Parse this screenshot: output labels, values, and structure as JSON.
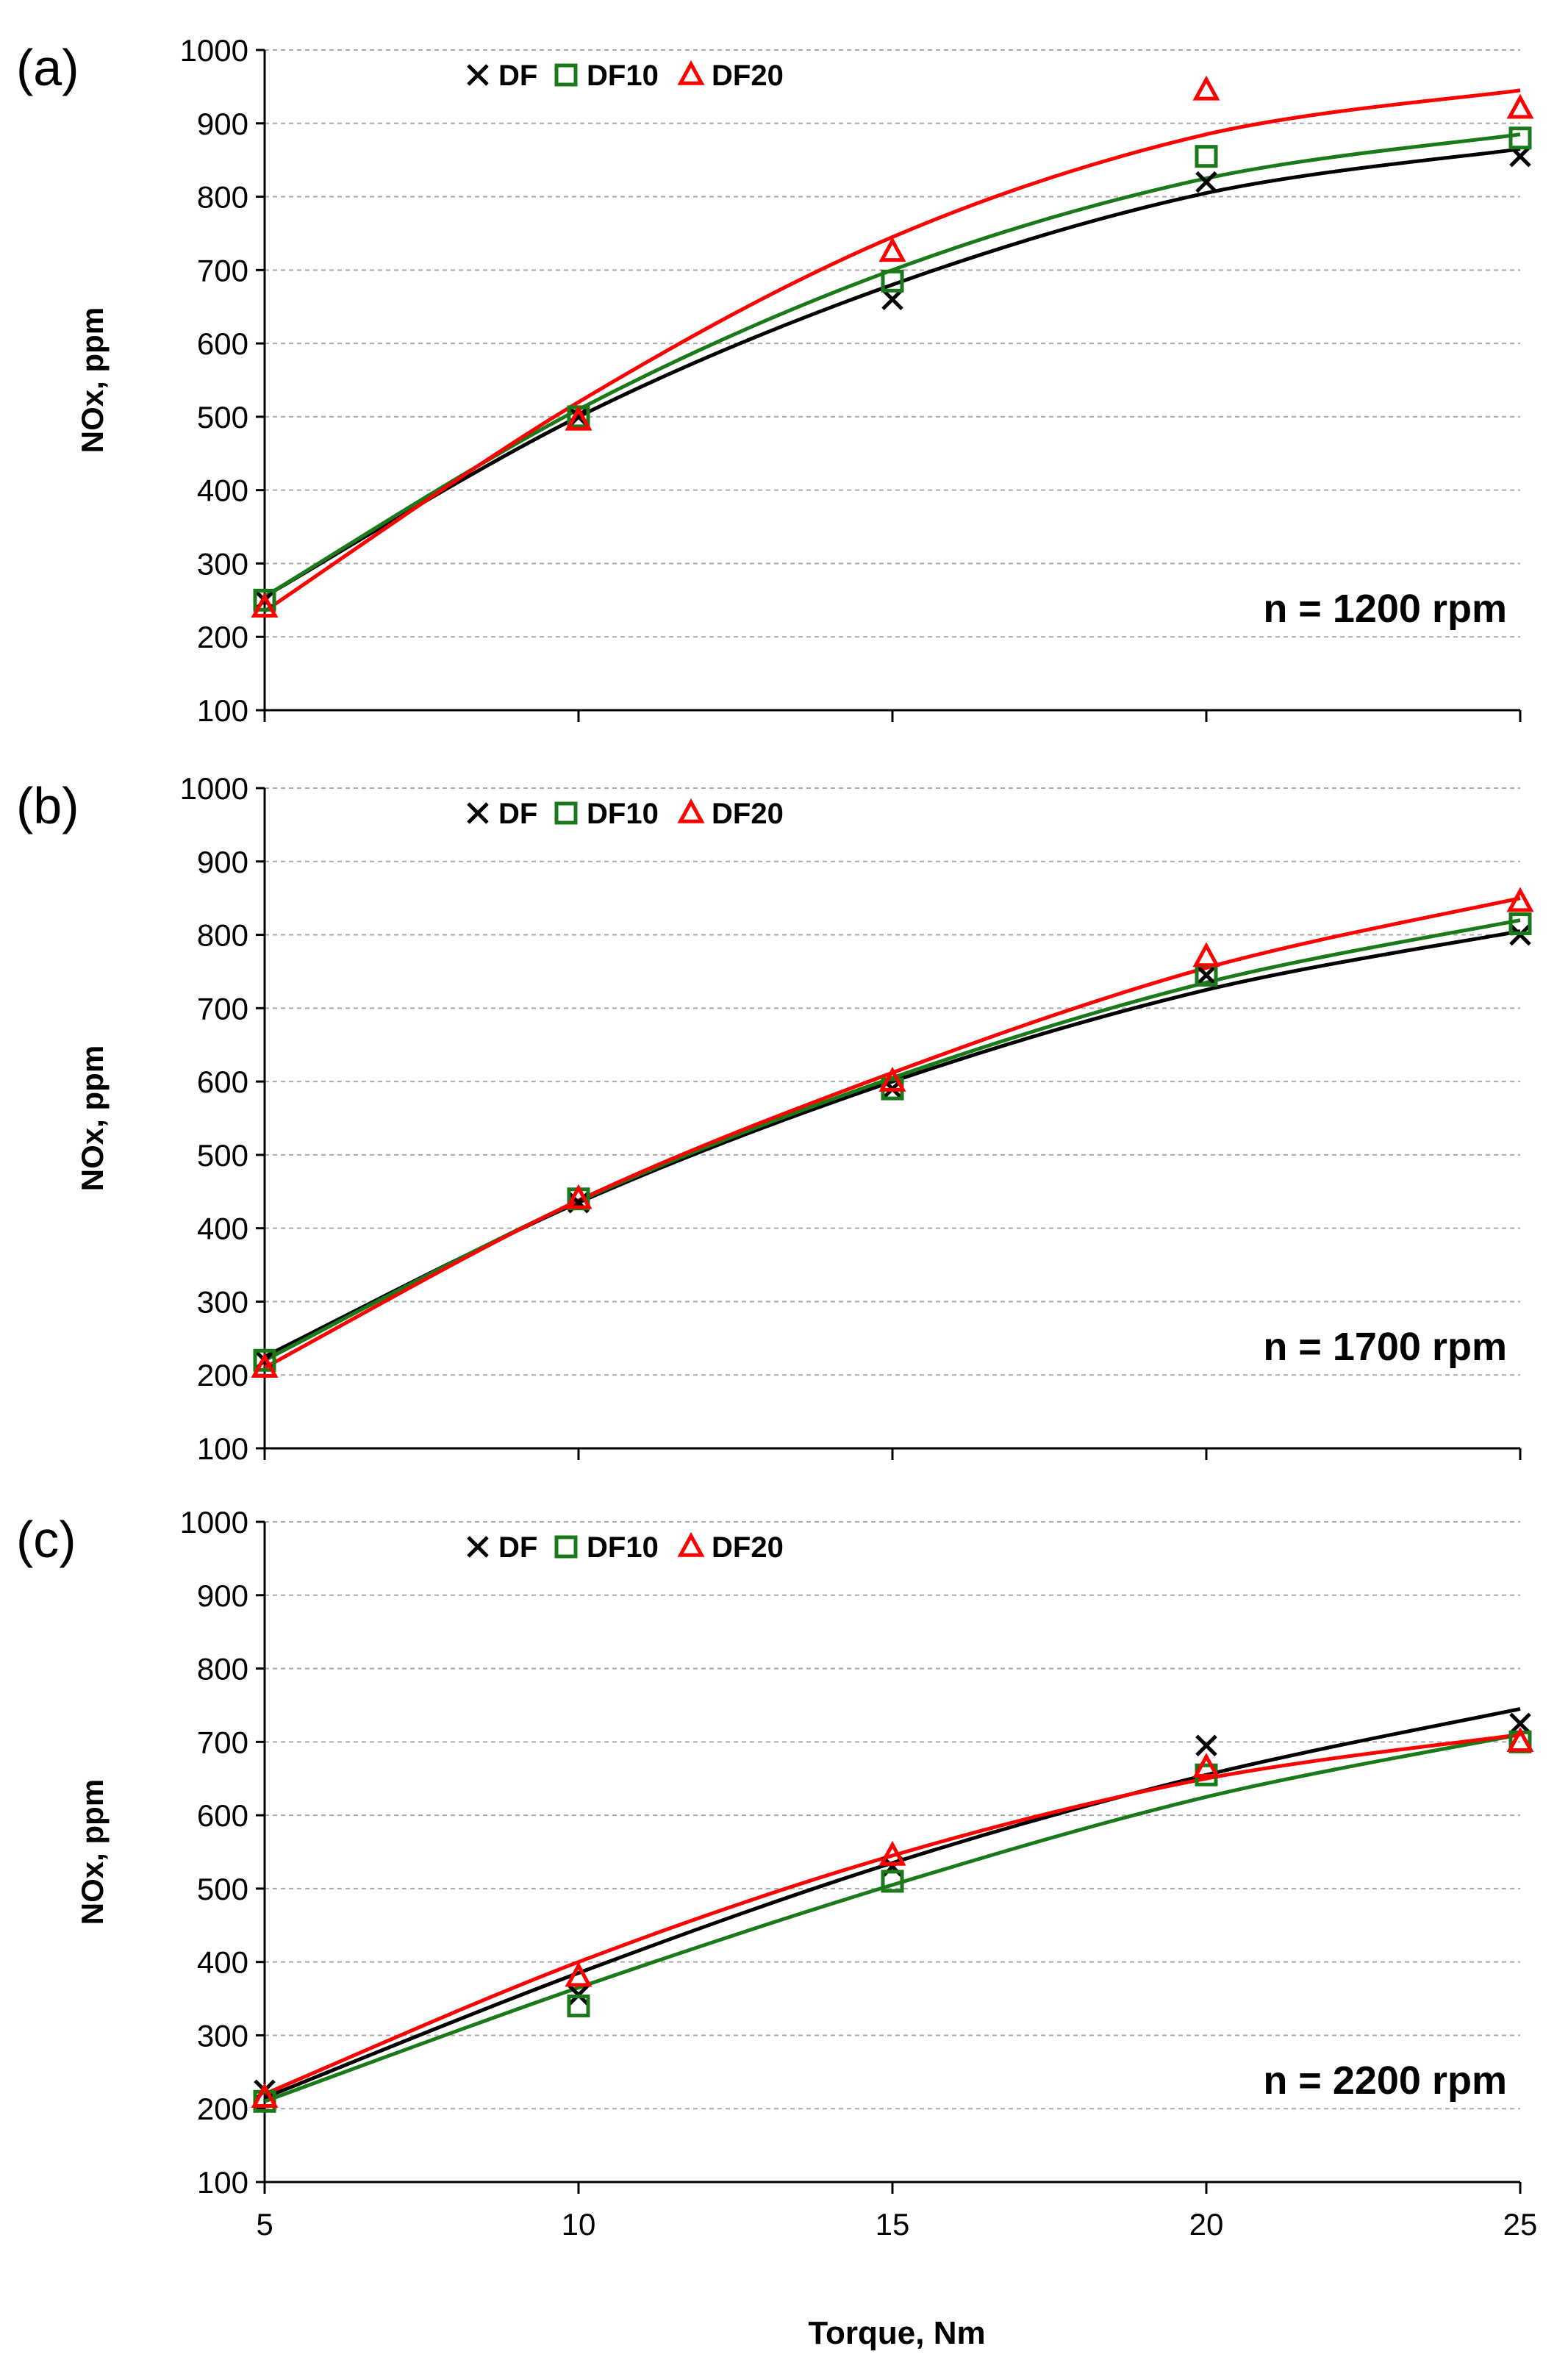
{
  "figure": {
    "shared_xlabel": "Torque, Nm",
    "colors": {
      "DF": "#000000",
      "DF10": "#1a7a1a",
      "DF20": "#ff0000",
      "grid": "#aaaaaa",
      "axis": "#000000"
    }
  },
  "chart_data": [
    {
      "panel_label": "(a)",
      "type": "scatter",
      "ylabel": "NOx, ppm",
      "xlabel": "Torque, Nm",
      "annotation": "n = 1200 rpm",
      "xlim": [
        5,
        25
      ],
      "ylim": [
        100,
        1000
      ],
      "xticks": [
        "5",
        "10",
        "15",
        "20",
        "25"
      ],
      "yticks": [
        "100",
        "200",
        "300",
        "400",
        "500",
        "600",
        "700",
        "800",
        "900",
        "1000"
      ],
      "grid": true,
      "legend_position": "top-left",
      "x": [
        5,
        10,
        15,
        20,
        25
      ],
      "series": [
        {
          "name": "DF",
          "marker": "x",
          "values": [
            250,
            500,
            660,
            820,
            855
          ],
          "fit": [
            255,
            500,
            680,
            805,
            865
          ]
        },
        {
          "name": "DF10",
          "marker": "square",
          "values": [
            250,
            500,
            685,
            855,
            880
          ],
          "fit": [
            255,
            510,
            700,
            825,
            885
          ]
        },
        {
          "name": "DF20",
          "marker": "triangle",
          "values": [
            240,
            495,
            725,
            945,
            920
          ],
          "fit": [
            235,
            520,
            745,
            885,
            945
          ]
        }
      ]
    },
    {
      "panel_label": "(b)",
      "type": "scatter",
      "ylabel": "NOx, ppm",
      "xlabel": "Torque, Nm",
      "annotation": "n = 1700 rpm",
      "xlim": [
        5,
        25
      ],
      "ylim": [
        100,
        1000
      ],
      "xticks": [
        "5",
        "10",
        "15",
        "20",
        "25"
      ],
      "yticks": [
        "100",
        "200",
        "300",
        "400",
        "500",
        "600",
        "700",
        "800",
        "900",
        "1000"
      ],
      "grid": true,
      "legend_position": "top-left",
      "x": [
        5,
        10,
        15,
        20,
        25
      ],
      "series": [
        {
          "name": "DF",
          "marker": "x",
          "values": [
            220,
            435,
            590,
            745,
            800
          ],
          "fit": [
            225,
            435,
            600,
            725,
            805
          ]
        },
        {
          "name": "DF10",
          "marker": "square",
          "values": [
            220,
            440,
            590,
            745,
            815
          ],
          "fit": [
            220,
            437,
            605,
            735,
            820
          ]
        },
        {
          "name": "DF20",
          "marker": "triangle",
          "values": [
            210,
            440,
            600,
            770,
            845
          ],
          "fit": [
            210,
            438,
            612,
            755,
            850
          ]
        }
      ]
    },
    {
      "panel_label": "(c)",
      "type": "scatter",
      "ylabel": "NOx, ppm",
      "xlabel": "Torque, Nm",
      "annotation": "n = 2200 rpm",
      "xlim": [
        5,
        25
      ],
      "ylim": [
        100,
        1000
      ],
      "xticks": [
        "5",
        "10",
        "15",
        "20",
        "25"
      ],
      "yticks": [
        "100",
        "200",
        "300",
        "400",
        "500",
        "600",
        "700",
        "800",
        "900",
        "1000"
      ],
      "grid": true,
      "legend_position": "top-left",
      "x": [
        5,
        10,
        15,
        20,
        25
      ],
      "series": [
        {
          "name": "DF",
          "marker": "x",
          "values": [
            225,
            355,
            530,
            695,
            725
          ],
          "fit": [
            215,
            385,
            535,
            655,
            745
          ]
        },
        {
          "name": "DF10",
          "marker": "square",
          "values": [
            210,
            340,
            510,
            655,
            700
          ],
          "fit": [
            210,
            365,
            505,
            625,
            710
          ]
        },
        {
          "name": "DF20",
          "marker": "triangle",
          "values": [
            215,
            380,
            545,
            665,
            700
          ],
          "fit": [
            220,
            400,
            545,
            650,
            710
          ]
        }
      ]
    }
  ]
}
